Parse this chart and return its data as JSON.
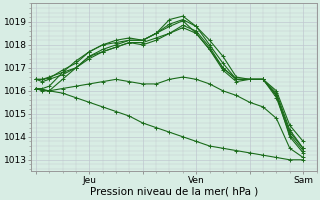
{
  "bg_color": "#d8ede4",
  "grid_color": "#c0c8d0",
  "line_color": "#1a6b1a",
  "marker": "+",
  "markersize": 3,
  "linewidth": 0.8,
  "ylabel_ticks": [
    1013,
    1014,
    1015,
    1016,
    1017,
    1018,
    1019
  ],
  "xlabel": "Pression niveau de la mer( hPa )",
  "xlabel_fontsize": 7.5,
  "tick_fontsize": 6.5,
  "xtick_labels": [
    "",
    "Jeu",
    "",
    "Ven",
    "",
    "Sam"
  ],
  "xtick_positions": [
    0.0,
    24,
    48,
    72,
    96,
    120
  ],
  "ylim": [
    1012.5,
    1019.8
  ],
  "xlim": [
    -2,
    126
  ],
  "lines": [
    [
      0,
      1016.1,
      3,
      1016.05,
      6,
      1016.0,
      12,
      1016.5,
      18,
      1017.0,
      24,
      1017.5,
      30,
      1017.8,
      36,
      1018.0,
      42,
      1018.2,
      48,
      1018.2,
      54,
      1018.5,
      60,
      1019.1,
      66,
      1019.25,
      72,
      1018.8,
      78,
      1018.2,
      84,
      1017.5,
      90,
      1016.6,
      96,
      1016.5,
      102,
      1016.5,
      108,
      1015.8,
      114,
      1014.0,
      120,
      1013.3
    ],
    [
      0,
      1016.5,
      3,
      1016.5,
      6,
      1016.55,
      12,
      1016.9,
      18,
      1017.2,
      24,
      1017.7,
      30,
      1018.0,
      36,
      1018.1,
      42,
      1018.2,
      48,
      1018.2,
      54,
      1018.5,
      60,
      1018.8,
      66,
      1019.05,
      72,
      1018.5,
      78,
      1017.8,
      84,
      1017.0,
      90,
      1016.5,
      96,
      1016.5,
      102,
      1016.5,
      108,
      1016.0,
      114,
      1014.5,
      120,
      1013.8
    ],
    [
      0,
      1016.5,
      3,
      1016.5,
      6,
      1016.6,
      12,
      1016.8,
      18,
      1017.0,
      24,
      1017.4,
      30,
      1017.7,
      36,
      1017.9,
      42,
      1018.1,
      48,
      1018.1,
      54,
      1018.3,
      60,
      1018.5,
      66,
      1018.85,
      72,
      1018.6,
      78,
      1017.9,
      84,
      1017.0,
      90,
      1016.5,
      96,
      1016.5,
      102,
      1016.5,
      108,
      1015.8,
      114,
      1014.2,
      120,
      1013.5
    ],
    [
      0,
      1016.1,
      3,
      1016.1,
      6,
      1016.2,
      12,
      1016.8,
      18,
      1017.3,
      24,
      1017.7,
      30,
      1018.0,
      36,
      1018.2,
      42,
      1018.3,
      48,
      1018.2,
      54,
      1018.5,
      60,
      1018.9,
      66,
      1019.1,
      72,
      1018.8,
      78,
      1018.0,
      84,
      1017.2,
      90,
      1016.5,
      96,
      1016.5,
      102,
      1016.5,
      108,
      1015.9,
      114,
      1014.3,
      120,
      1013.5
    ],
    [
      0,
      1016.5,
      3,
      1016.4,
      6,
      1016.5,
      12,
      1016.7,
      18,
      1017.0,
      24,
      1017.5,
      30,
      1017.7,
      36,
      1017.9,
      42,
      1018.1,
      48,
      1018.0,
      54,
      1018.2,
      60,
      1018.5,
      66,
      1018.75,
      72,
      1018.5,
      78,
      1017.8,
      84,
      1016.9,
      90,
      1016.4,
      96,
      1016.5,
      102,
      1016.5,
      108,
      1015.7,
      114,
      1014.1,
      120,
      1013.4
    ],
    [
      0,
      1016.1,
      3,
      1016.0,
      6,
      1016.0,
      12,
      1016.1,
      18,
      1016.2,
      24,
      1016.3,
      30,
      1016.4,
      36,
      1016.5,
      42,
      1016.4,
      48,
      1016.3,
      54,
      1016.3,
      60,
      1016.5,
      66,
      1016.6,
      72,
      1016.5,
      78,
      1016.3,
      84,
      1016.0,
      90,
      1015.8,
      96,
      1015.5,
      102,
      1015.3,
      108,
      1014.8,
      114,
      1013.5,
      120,
      1013.1
    ],
    [
      0,
      1016.1,
      6,
      1016.0,
      12,
      1015.9,
      18,
      1015.7,
      24,
      1015.5,
      30,
      1015.3,
      36,
      1015.1,
      42,
      1014.9,
      48,
      1014.6,
      54,
      1014.4,
      60,
      1014.2,
      66,
      1014.0,
      72,
      1013.8,
      78,
      1013.6,
      84,
      1013.5,
      90,
      1013.4,
      96,
      1013.3,
      102,
      1013.2,
      108,
      1013.1,
      114,
      1013.0,
      120,
      1013.0
    ]
  ]
}
